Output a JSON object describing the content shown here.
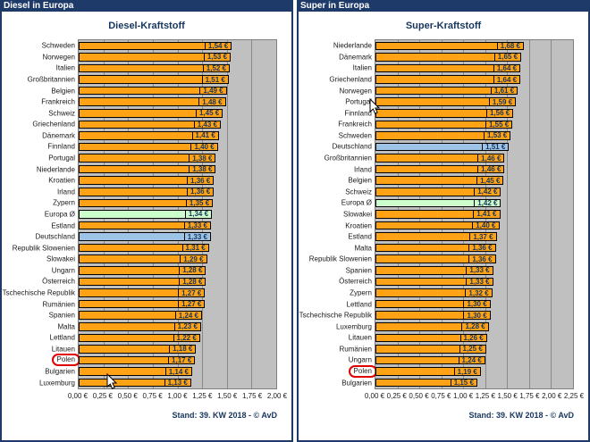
{
  "colors": {
    "titlebar_bg": "#1E3A68",
    "titlebar_text": "#FFFFFF",
    "chart_title_text": "#17365D",
    "bar_fill": "#FFA216",
    "bar_border": "#000000",
    "average_fill": "#CCFFCC",
    "germany_fill": "#9DC3E6",
    "plot_bg": "#C0C0C0",
    "gridline": "#8A8A8A",
    "value_text": "#17365D",
    "circle_outline": "#E00000"
  },
  "chart_data": [
    {
      "type": "bar",
      "orientation": "horizontal",
      "window_title": "Diesel in Europa",
      "title": "Diesel-Kraftstoff",
      "footer": "Stand: 39. KW 2018 - © AvD",
      "xlim": [
        0,
        2.0
      ],
      "x_tick_labels": [
        "0,00 €",
        "0,25 €",
        "0,50 €",
        "0,75 €",
        "1,00 €",
        "1,25 €",
        "1,50 €",
        "1,75 €",
        "2,00 €"
      ],
      "grid": true,
      "categories": [
        "Schweden",
        "Norwegen",
        "Italien",
        "Großbritannien",
        "Belgien",
        "Frankreich",
        "Schweiz",
        "Griechenland",
        "Dänemark",
        "Finnland",
        "Portugal",
        "Niederlande",
        "Kroatien",
        "Irland",
        "Zypern",
        "Europa Ø",
        "Estland",
        "Deutschland",
        "Republik Slowenien",
        "Slowakei",
        "Ungarn",
        "Österreich",
        "Tschechische Republik",
        "Rumänien",
        "Spanien",
        "Malta",
        "Lettland",
        "Litauen",
        "Polen",
        "Bulgarien",
        "Luxemburg"
      ],
      "values": [
        1.54,
        1.53,
        1.52,
        1.51,
        1.49,
        1.48,
        1.45,
        1.43,
        1.41,
        1.4,
        1.38,
        1.38,
        1.36,
        1.36,
        1.35,
        1.34,
        1.33,
        1.33,
        1.31,
        1.29,
        1.28,
        1.28,
        1.27,
        1.27,
        1.24,
        1.23,
        1.22,
        1.18,
        1.17,
        1.14,
        1.13
      ],
      "value_labels": [
        "1,54 €",
        "1,53 €",
        "1,52 €",
        "1,51 €",
        "1,49 €",
        "1,48 €",
        "1,45 €",
        "1,43 €",
        "1,41 €",
        "1,40 €",
        "1,38 €",
        "1,38 €",
        "1,36 €",
        "1,36 €",
        "1,35 €",
        "1,34 €",
        "1,33 €",
        "1,33 €",
        "1,31 €",
        "1,29 €",
        "1,28 €",
        "1,28 €",
        "1,27 €",
        "1,27 €",
        "1,24 €",
        "1,23 €",
        "1,22 €",
        "1,18 €",
        "1,17 €",
        "1,14 €",
        "1,13 €"
      ],
      "highlight_green": "Europa Ø",
      "highlight_blue": "Deutschland",
      "circled_label": "Polen"
    },
    {
      "type": "bar",
      "orientation": "horizontal",
      "window_title": "Super in Europa",
      "title": "Super-Kraftstoff",
      "footer": "Stand: 39. KW 2018 - © AvD",
      "xlim": [
        0,
        2.25
      ],
      "x_tick_labels": [
        "0,00 €",
        "0,25 €",
        "0,50 €",
        "0,75 €",
        "1,00 €",
        "1,25 €",
        "1,50 €",
        "1,75 €",
        "2,00 €",
        "2,25 €"
      ],
      "grid": true,
      "categories": [
        "Niederlande",
        "Dänemark",
        "Italien",
        "Griechenland",
        "Norwegen",
        "Portugal",
        "Finnland",
        "Frankreich",
        "Schweden",
        "Deutschland",
        "Großbritannien",
        "Irland",
        "Belgien",
        "Schweiz",
        "Europa Ø",
        "Slowakei",
        "Kroatien",
        "Estland",
        "Malta",
        "Republik Slowenien",
        "Spanien",
        "Österreich",
        "Zypern",
        "Lettland",
        "Tschechische Republik",
        "Luxemburg",
        "Litauen",
        "Rumänien",
        "Ungarn",
        "Polen",
        "Bulgarien"
      ],
      "values": [
        1.68,
        1.65,
        1.64,
        1.64,
        1.61,
        1.59,
        1.56,
        1.55,
        1.53,
        1.51,
        1.46,
        1.46,
        1.45,
        1.42,
        1.42,
        1.41,
        1.4,
        1.37,
        1.36,
        1.36,
        1.33,
        1.33,
        1.32,
        1.3,
        1.3,
        1.28,
        1.26,
        1.25,
        1.24,
        1.19,
        1.15
      ],
      "value_labels": [
        "1,68 €",
        "1,65 €",
        "1,64 €",
        "1,64 €",
        "1,61 €",
        "1,59 €",
        "1,56 €",
        "1,55 €",
        "1,53 €",
        "1,51 €",
        "1,46 €",
        "1,46 €",
        "1,45 €",
        "1,42 €",
        "1,42 €",
        "1,41 €",
        "1,40 €",
        "1,37 €",
        "1,36 €",
        "1,36 €",
        "1,33 €",
        "1,33 €",
        "1,32 €",
        "1,30 €",
        "1,30 €",
        "1,28 €",
        "1,26 €",
        "1,25 €",
        "1,24 €",
        "1,19 €",
        "1,15 €"
      ],
      "highlight_green": "Europa Ø",
      "highlight_blue": "Deutschland",
      "circled_label": "Polen"
    }
  ]
}
